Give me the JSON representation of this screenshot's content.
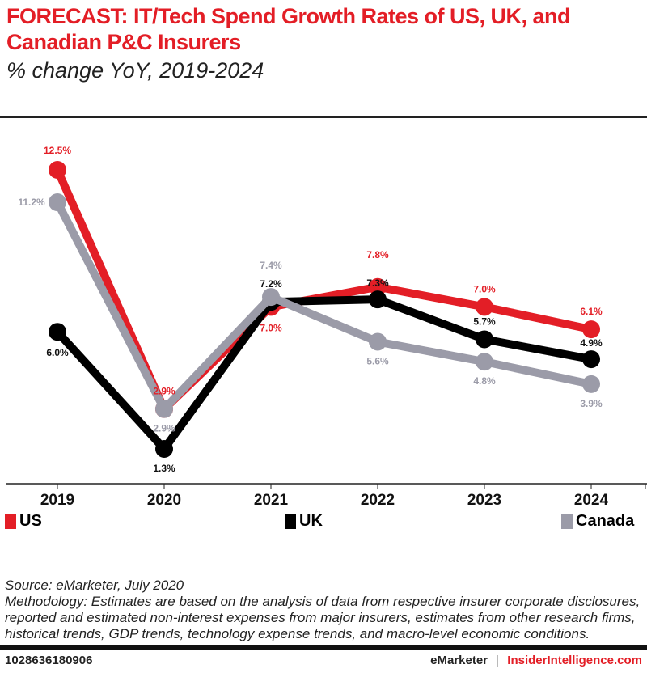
{
  "chart_data": {
    "type": "line",
    "title": "FORECAST: IT/Tech Spend Growth Rates of US, UK, and Canadian P&C Insurers",
    "subtitle": "% change YoY, 2019-2024",
    "categories": [
      "2019",
      "2020",
      "2021",
      "2022",
      "2023",
      "2024"
    ],
    "ylim": [
      0,
      12.5
    ],
    "grid": false,
    "legend": "bottom",
    "series": [
      {
        "name": "US",
        "color": "#e31e26",
        "values": [
          12.5,
          2.9,
          7.0,
          7.8,
          7.0,
          6.1
        ],
        "labels": [
          "12.5%",
          "2.9%",
          "7.0%",
          "7.8%",
          "7.0%",
          "6.1%"
        ]
      },
      {
        "name": "UK",
        "color": "#000000",
        "values": [
          6.0,
          1.3,
          7.2,
          7.3,
          5.7,
          4.9
        ],
        "labels": [
          "6.0%",
          "1.3%",
          "7.2%",
          "7.3%",
          "5.7%",
          "4.9%"
        ]
      },
      {
        "name": "Canada",
        "color": "#9b9ba8",
        "values": [
          11.2,
          2.9,
          7.4,
          5.6,
          4.8,
          3.9
        ],
        "labels": [
          "11.2%",
          "2.9%",
          "7.4%",
          "5.6%",
          "4.8%",
          "3.9%"
        ]
      }
    ]
  },
  "source": "Source: eMarketer, July 2020",
  "methodology": "Methodology: Estimates are based on the analysis of data from respective insurer corporate disclosures, reported and estimated non-interest expenses from major insurers, estimates from other research firms, historical trends, GDP trends, technology expense trends, and macro-level economic conditions.",
  "footer": {
    "id": "1028636180906",
    "brand1": "eMarketer",
    "separator": "|",
    "brand2": "InsiderIntelligence.com"
  }
}
